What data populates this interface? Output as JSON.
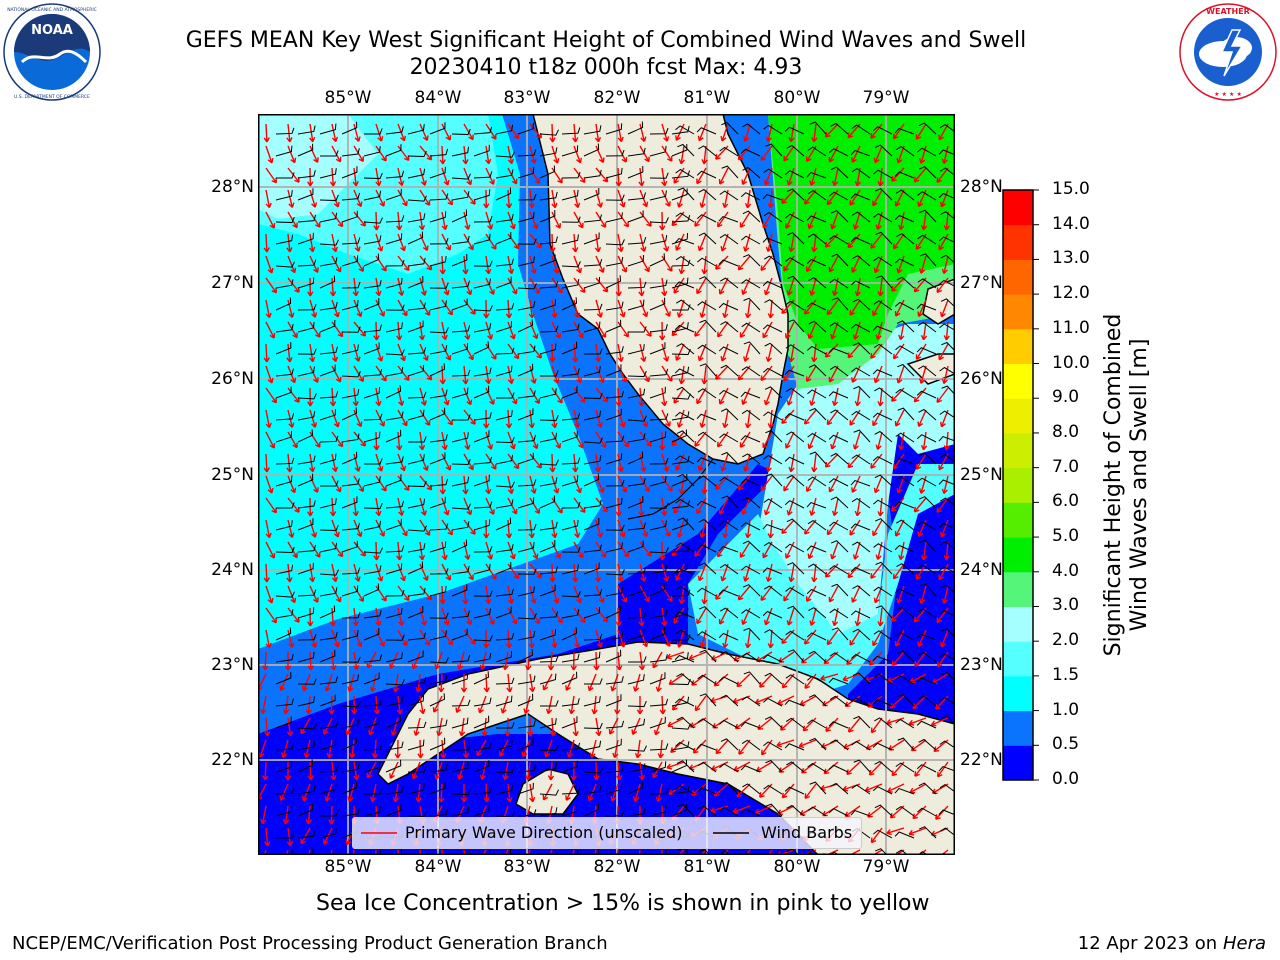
{
  "header": {
    "title_line1": "GEFS MEAN Key West Significant Height of Combined Wind Waves and Swell",
    "title_line2": "20230410 t18z 000h fcst   Max: 4.93"
  },
  "logos": {
    "left": {
      "name": "NOAA",
      "ring_text": "NATIONAL OCEANIC AND ATMOSPHERIC ADMINISTRATION · U.S. DEPARTMENT OF COMMERCE",
      "colors": [
        "#1a3a7a",
        "#ffffff",
        "#0a6ad8"
      ]
    },
    "right": {
      "ring_text": "NATIONAL WEATHER SERVICE",
      "colors": [
        "#d8142a",
        "#ffffff",
        "#1a5fd0"
      ]
    }
  },
  "map": {
    "lon_labels": [
      "85°W",
      "84°W",
      "83°W",
      "82°W",
      "81°W",
      "80°W",
      "79°W"
    ],
    "lat_labels": [
      "28°N",
      "27°N",
      "26°N",
      "25°N",
      "24°N",
      "23°N",
      "22°N"
    ],
    "colors": {
      "land": "#eeeddd",
      "coast": "#000000",
      "grid": "#b0b0b0",
      "arrow": "#ff0000",
      "barb": "#000000"
    },
    "legend": {
      "primary_label": "Primary Wave Direction (unscaled)",
      "barb_label": "Wind Barbs"
    }
  },
  "colorbar": {
    "label_line1": "Significant Height of Combined",
    "label_line2": "Wind Waves and Swell [m]",
    "ticks": [
      "15.0",
      "14.0",
      "13.0",
      "12.0",
      "11.0",
      "10.0",
      "9.0",
      "8.0",
      "7.0",
      "6.0",
      "5.0",
      "4.0",
      "3.0",
      "2.0",
      "1.5",
      "1.0",
      "0.5",
      "0.0"
    ],
    "colors_bottom_to_top": [
      "#0000ff",
      "#0a74ff",
      "#00ffff",
      "#55ffff",
      "#a6ffff",
      "#55f57a",
      "#00ee00",
      "#55ee00",
      "#aaee00",
      "#ccee00",
      "#eeee00",
      "#ffff00",
      "#ffcc00",
      "#ff8800",
      "#ff6600",
      "#ff3300",
      "#ff0000"
    ]
  },
  "footer": {
    "ice_note": "Sea Ice Concentration > 15% is shown in pink to yellow",
    "credit": "NCEP/EMC/Verification Post Processing Product Generation Branch",
    "date": "12 Apr 2023 on",
    "host": "Hera"
  }
}
